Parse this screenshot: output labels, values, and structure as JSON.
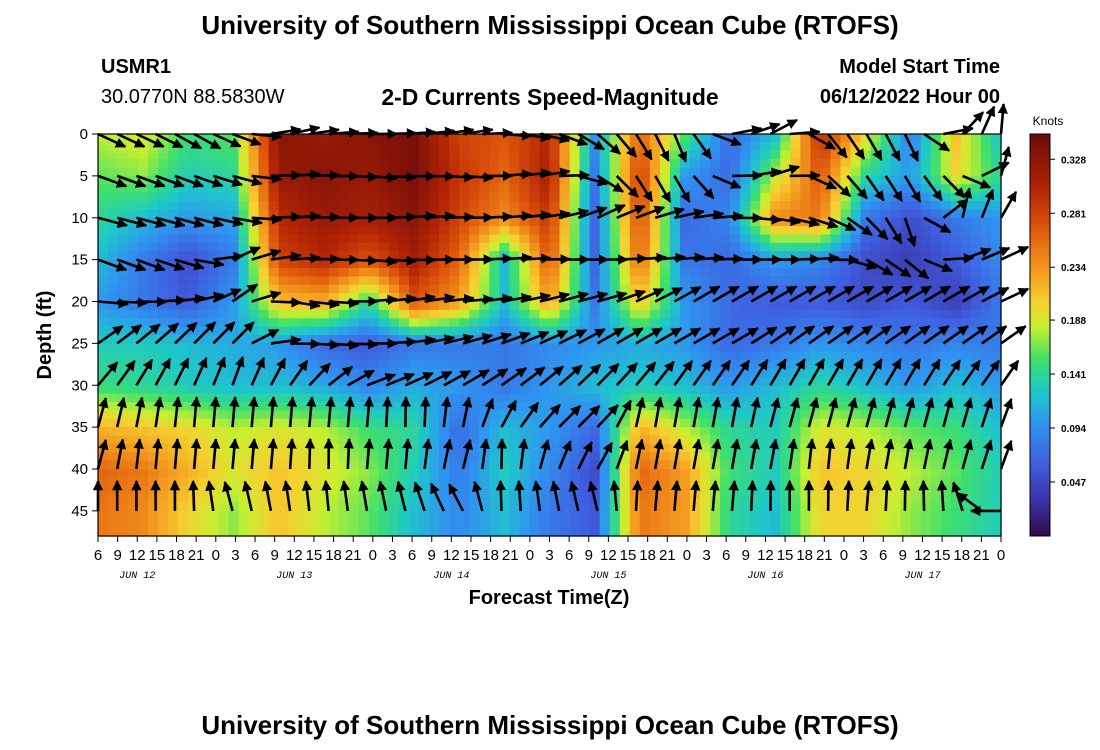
{
  "header": {
    "title": "University of Southern Mississippi Ocean Cube (RTOFS)",
    "station_id": "USMR1",
    "coordinates": "30.0770N  88.5830W",
    "plot_title": "2-D Currents Speed-Magnitude",
    "model_start_label": "Model Start Time",
    "model_start_value": "06/12/2022 Hour 00"
  },
  "footer": {
    "title": "University of Southern Mississippi Ocean Cube (RTOFS)"
  },
  "chart_data": {
    "type": "heatmap",
    "title": "2-D Currents Speed-Magnitude",
    "xlabel": "Forecast Time(Z)",
    "ylabel": "Depth (ft)",
    "x_range_hours": [
      0,
      138
    ],
    "ylim": [
      0,
      48
    ],
    "y_ticks": [
      0,
      5,
      10,
      15,
      20,
      25,
      30,
      35,
      40,
      45
    ],
    "x_tick_labels": [
      "6",
      "9",
      "12",
      "15",
      "18",
      "21",
      "0",
      "3",
      "6",
      "9",
      "12",
      "15",
      "18",
      "21",
      "0",
      "3",
      "6",
      "9",
      "12",
      "15",
      "18",
      "21",
      "0",
      "3",
      "6",
      "9",
      "12",
      "15",
      "18",
      "21",
      "0",
      "3",
      "6",
      "9",
      "12",
      "15",
      "18",
      "21",
      "0",
      "3",
      "6",
      "9",
      "12",
      "15",
      "18",
      "21",
      "0"
    ],
    "day_labels": [
      "JUN 12",
      "JUN 13",
      "JUN 14",
      "JUN 15",
      "JUN 16",
      "JUN 17"
    ],
    "colorbar": {
      "unit": "Knots",
      "ticks": [
        "0.328",
        "0.281",
        "0.234",
        "0.188",
        "0.141",
        "0.094",
        "0.047"
      ],
      "range": [
        0.0,
        0.35
      ]
    },
    "depths_ft": [
      0,
      5,
      10,
      15,
      20,
      25,
      30,
      35,
      40,
      45
    ],
    "speed_knots": [
      [
        0.18,
        0.19,
        0.15,
        0.16,
        0.33,
        0.32,
        0.33,
        0.34,
        0.28,
        0.27,
        0.3,
        0.1,
        0.26,
        0.16,
        0.07,
        0.12,
        0.3,
        0.2,
        0.08,
        0.21,
        0.12
      ],
      [
        0.16,
        0.17,
        0.13,
        0.14,
        0.32,
        0.33,
        0.32,
        0.34,
        0.29,
        0.26,
        0.31,
        0.08,
        0.29,
        0.1,
        0.07,
        0.18,
        0.27,
        0.14,
        0.1,
        0.2,
        0.14
      ],
      [
        0.14,
        0.12,
        0.1,
        0.11,
        0.3,
        0.32,
        0.31,
        0.33,
        0.28,
        0.24,
        0.29,
        0.07,
        0.28,
        0.07,
        0.09,
        0.24,
        0.25,
        0.08,
        0.05,
        0.08,
        0.1
      ],
      [
        0.12,
        0.08,
        0.05,
        0.08,
        0.28,
        0.3,
        0.27,
        0.31,
        0.26,
        0.12,
        0.27,
        0.07,
        0.26,
        0.08,
        0.07,
        0.1,
        0.09,
        0.05,
        0.04,
        0.06,
        0.09
      ],
      [
        0.1,
        0.08,
        0.06,
        0.1,
        0.21,
        0.22,
        0.14,
        0.27,
        0.23,
        0.12,
        0.23,
        0.08,
        0.21,
        0.1,
        0.07,
        0.06,
        0.06,
        0.05,
        0.06,
        0.04,
        0.08
      ],
      [
        0.13,
        0.13,
        0.12,
        0.11,
        0.1,
        0.07,
        0.06,
        0.08,
        0.08,
        0.08,
        0.09,
        0.1,
        0.11,
        0.1,
        0.07,
        0.08,
        0.1,
        0.09,
        0.08,
        0.09,
        0.08
      ],
      [
        0.15,
        0.14,
        0.13,
        0.12,
        0.12,
        0.11,
        0.09,
        0.11,
        0.1,
        0.08,
        0.1,
        0.12,
        0.13,
        0.12,
        0.1,
        0.12,
        0.14,
        0.12,
        0.1,
        0.12,
        0.1
      ],
      [
        0.22,
        0.21,
        0.2,
        0.18,
        0.19,
        0.18,
        0.15,
        0.14,
        0.07,
        0.12,
        0.1,
        0.07,
        0.22,
        0.18,
        0.14,
        0.13,
        0.19,
        0.18,
        0.16,
        0.15,
        0.12
      ],
      [
        0.26,
        0.25,
        0.22,
        0.19,
        0.21,
        0.19,
        0.17,
        0.13,
        0.08,
        0.13,
        0.09,
        0.05,
        0.26,
        0.23,
        0.15,
        0.13,
        0.21,
        0.2,
        0.18,
        0.16,
        0.13
      ],
      [
        0.25,
        0.24,
        0.2,
        0.17,
        0.21,
        0.18,
        0.16,
        0.12,
        0.09,
        0.12,
        0.08,
        0.06,
        0.25,
        0.23,
        0.14,
        0.12,
        0.2,
        0.2,
        0.17,
        0.15,
        0.13
      ]
    ],
    "direction_rows": [
      [
        -25,
        -25,
        -30,
        -20,
        15,
        5,
        0,
        5,
        10,
        -5,
        -15,
        -40,
        -60,
        -70,
        10,
        30,
        -50,
        -60,
        -65,
        40,
        85
      ],
      [
        -20,
        -20,
        -20,
        -15,
        5,
        0,
        -5,
        0,
        -5,
        5,
        10,
        -30,
        -60,
        -60,
        0,
        20,
        -40,
        -55,
        -60,
        -40,
        75
      ],
      [
        -15,
        -15,
        -15,
        -10,
        5,
        0,
        0,
        5,
        0,
        5,
        10,
        25,
        20,
        10,
        0,
        -10,
        -20,
        -45,
        -75,
        80,
        60
      ],
      [
        -20,
        -20,
        -15,
        25,
        5,
        0,
        -5,
        0,
        0,
        5,
        0,
        0,
        5,
        5,
        0,
        0,
        5,
        -30,
        -40,
        20,
        25
      ],
      [
        -5,
        0,
        10,
        35,
        -10,
        -5,
        5,
        10,
        5,
        10,
        15,
        15,
        25,
        30,
        30,
        30,
        30,
        30,
        30,
        30,
        25
      ],
      [
        35,
        40,
        45,
        45,
        0,
        -5,
        0,
        10,
        15,
        20,
        25,
        30,
        30,
        30,
        30,
        35,
        35,
        35,
        35,
        35,
        35
      ],
      [
        50,
        60,
        65,
        70,
        60,
        40,
        20,
        25,
        30,
        35,
        40,
        45,
        50,
        55,
        55,
        60,
        60,
        60,
        60,
        55,
        55
      ],
      [
        75,
        80,
        85,
        85,
        85,
        85,
        85,
        90,
        80,
        60,
        45,
        45,
        80,
        80,
        80,
        75,
        75,
        75,
        75,
        75,
        70
      ],
      [
        75,
        85,
        85,
        85,
        85,
        90,
        85,
        85,
        75,
        90,
        70,
        60,
        80,
        80,
        80,
        80,
        85,
        80,
        80,
        75,
        70
      ],
      [
        90,
        90,
        90,
        105,
        100,
        95,
        100,
        105,
        120,
        90,
        100,
        105,
        85,
        85,
        85,
        90,
        90,
        85,
        90,
        95,
        180
      ]
    ]
  }
}
